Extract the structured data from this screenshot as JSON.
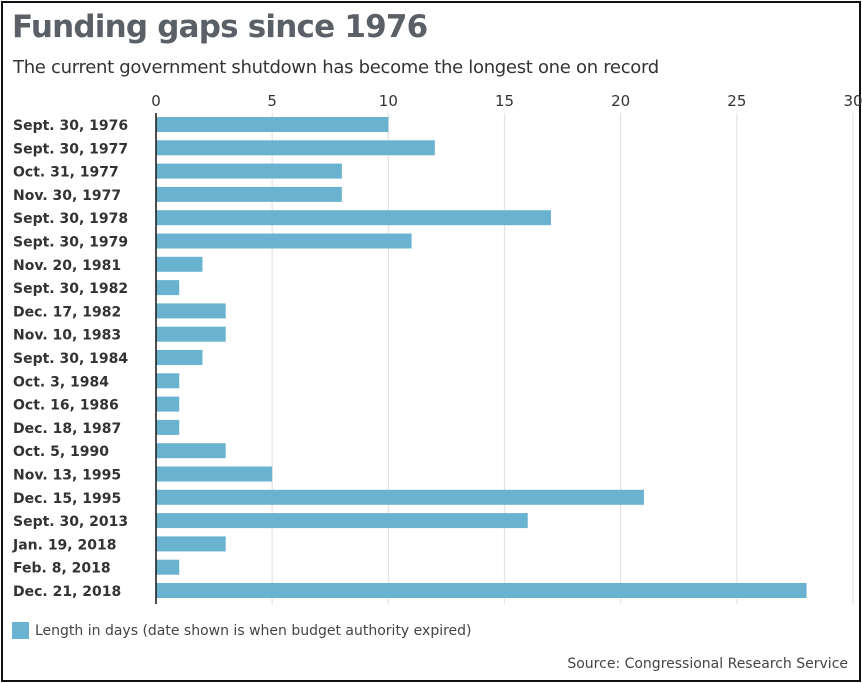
{
  "chart_data": {
    "type": "bar",
    "orientation": "horizontal",
    "title": "Funding gaps since 1976",
    "subtitle": "The current government shutdown has become the longest one on record",
    "categories": [
      "Sept. 30, 1976",
      "Sept. 30, 1977",
      "Oct. 31, 1977",
      "Nov. 30, 1977",
      "Sept. 30, 1978",
      "Sept. 30, 1979",
      "Nov. 20, 1981",
      "Sept. 30, 1982",
      "Dec. 17, 1982",
      "Nov. 10, 1983",
      "Sept. 30, 1984",
      "Oct. 3, 1984",
      "Oct. 16, 1986",
      "Dec. 18, 1987",
      "Oct. 5, 1990",
      "Nov. 13, 1995",
      "Dec. 15, 1995",
      "Sept. 30, 2013",
      "Jan. 19, 2018",
      "Feb. 8, 2018",
      "Dec. 21, 2018"
    ],
    "series": [
      {
        "name": "Length in days (date shown is when budget authority expired)",
        "values": [
          10,
          12,
          8,
          8,
          17,
          11,
          2,
          1,
          3,
          3,
          2,
          1,
          1,
          1,
          3,
          5,
          21,
          16,
          3,
          1,
          28
        ]
      }
    ],
    "xlim": [
      0,
      30
    ],
    "xticks": [
      0,
      5,
      10,
      15,
      20,
      25,
      30
    ],
    "x_axis_position": "top",
    "grid": true,
    "legend_position": "bottom-left",
    "source": "Source: Congressional Research Service"
  },
  "colors": {
    "bar": "#69b3d0",
    "grid": "#e3e3e3",
    "axis": "#222222",
    "title": "#5b5f66",
    "text": "#333333"
  }
}
